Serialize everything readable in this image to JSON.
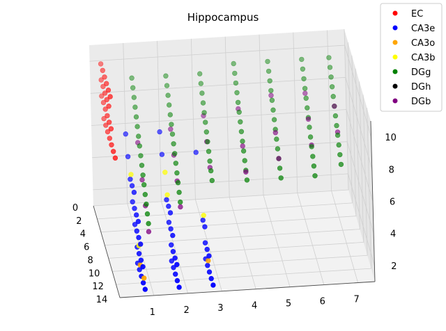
{
  "chart_data": {
    "type": "scatter",
    "projection": "3d",
    "title": "Hippocampus",
    "xlabel": "",
    "ylabel": "",
    "zlabel": "",
    "xlim": [
      0,
      7.5
    ],
    "ylim": [
      0,
      14
    ],
    "zlim": [
      1,
      11
    ],
    "x_ticks": [
      "1",
      "2",
      "3",
      "4",
      "5",
      "6",
      "7"
    ],
    "y_ticks": [
      "0",
      "2",
      "4",
      "6",
      "8",
      "10",
      "12",
      "14"
    ],
    "z_ticks": [
      "2",
      "4",
      "6",
      "8",
      "10"
    ],
    "grid": true,
    "legend_position": "top-right",
    "series": [
      {
        "name": "EC",
        "color": "#ff0000",
        "points": [
          [
            0.3,
            0.5,
            10
          ],
          [
            0.3,
            1.5,
            10
          ],
          [
            0.3,
            2.5,
            10
          ],
          [
            0.3,
            3.5,
            10
          ],
          [
            0.3,
            4.5,
            10
          ],
          [
            0.3,
            5.5,
            10
          ],
          [
            0.3,
            0.5,
            9
          ],
          [
            0.3,
            1.5,
            9
          ],
          [
            0.3,
            2.5,
            9
          ],
          [
            0.3,
            3.5,
            9
          ],
          [
            0.3,
            4.5,
            9
          ],
          [
            0.3,
            0.5,
            8
          ],
          [
            0.3,
            1.5,
            8
          ],
          [
            0.3,
            2.5,
            8
          ],
          [
            0.3,
            3.5,
            8
          ],
          [
            0.3,
            4.5,
            8
          ],
          [
            0.3,
            5.5,
            8
          ],
          [
            0.3,
            1.5,
            7
          ],
          [
            0.3,
            2.5,
            7
          ],
          [
            0.3,
            3.5,
            7
          ],
          [
            0.3,
            4.5,
            7
          ],
          [
            0.3,
            5.5,
            7
          ],
          [
            0.3,
            6.5,
            7
          ],
          [
            0.3,
            7.5,
            7
          ]
        ]
      },
      {
        "name": "CA3e",
        "color": "#0000ff",
        "points": [
          [
            0.8,
            9,
            1
          ],
          [
            0.8,
            10,
            1
          ],
          [
            0.8,
            11,
            1
          ],
          [
            0.8,
            12,
            1
          ],
          [
            0.8,
            13,
            1
          ],
          [
            0.8,
            9,
            2
          ],
          [
            0.8,
            10,
            2
          ],
          [
            0.8,
            11,
            2
          ],
          [
            0.8,
            12,
            2
          ],
          [
            0.8,
            8,
            3
          ],
          [
            0.8,
            9,
            3
          ],
          [
            0.8,
            10,
            3
          ],
          [
            0.8,
            11,
            3
          ],
          [
            0.8,
            7,
            4
          ],
          [
            0.8,
            8,
            4
          ],
          [
            0.8,
            9,
            4
          ],
          [
            0.8,
            10,
            4
          ],
          [
            0.8,
            6,
            5
          ],
          [
            0.8,
            7,
            5
          ],
          [
            0.8,
            8,
            5
          ],
          [
            1.8,
            9,
            1
          ],
          [
            1.8,
            10,
            1
          ],
          [
            1.8,
            11,
            1
          ],
          [
            1.8,
            12,
            1
          ],
          [
            1.8,
            13,
            1
          ],
          [
            1.8,
            9,
            2
          ],
          [
            1.8,
            10,
            2
          ],
          [
            1.8,
            11,
            2
          ],
          [
            1.8,
            12,
            2
          ],
          [
            1.8,
            8,
            3
          ],
          [
            1.8,
            9,
            3
          ],
          [
            1.8,
            10,
            3
          ],
          [
            1.8,
            7,
            4
          ],
          [
            1.8,
            8,
            4
          ],
          [
            1.8,
            9,
            4
          ],
          [
            2.8,
            9,
            1
          ],
          [
            2.8,
            10,
            1
          ],
          [
            2.8,
            11,
            1
          ],
          [
            2.8,
            12,
            1
          ],
          [
            2.8,
            13,
            1
          ],
          [
            2.8,
            9,
            2
          ],
          [
            2.8,
            10,
            2
          ],
          [
            2.8,
            11,
            2
          ],
          [
            2.8,
            8,
            3
          ],
          [
            2.8,
            9,
            3
          ],
          [
            0.8,
            5,
            6
          ],
          [
            1.8,
            5,
            6
          ],
          [
            0.8,
            4,
            7
          ],
          [
            1.8,
            4,
            7
          ],
          [
            2.8,
            5,
            6
          ]
        ]
      },
      {
        "name": "CA3o",
        "color": "#ffa500",
        "points": [
          [
            0.8,
            10.5,
            1.5
          ],
          [
            0.8,
            12.5,
            1.5
          ],
          [
            2.8,
            10.5,
            1.5
          ]
        ]
      },
      {
        "name": "CA3b",
        "color": "#ffff00",
        "points": [
          [
            0.8,
            6.5,
            5.5
          ],
          [
            1.8,
            7.5,
            4.5
          ],
          [
            2.8,
            8.5,
            3.5
          ],
          [
            1.8,
            6.5,
            5.5
          ],
          [
            0.8,
            10,
            2.5
          ]
        ]
      },
      {
        "name": "DGg",
        "color": "#008000",
        "points": [
          [
            1.2,
            0.5,
            9.0
          ],
          [
            1.2,
            1.0,
            8.6
          ],
          [
            1.2,
            1.5,
            8.2
          ],
          [
            1.2,
            2.0,
            7.8
          ],
          [
            1.2,
            2.5,
            7.4
          ],
          [
            1.2,
            3.0,
            7.0
          ],
          [
            1.2,
            3.5,
            6.6
          ],
          [
            1.2,
            4.0,
            6.2
          ],
          [
            1.2,
            4.5,
            5.8
          ],
          [
            1.2,
            5.0,
            5.4
          ],
          [
            1.2,
            5.5,
            5.0
          ],
          [
            1.2,
            6.0,
            4.6
          ],
          [
            1.2,
            6.5,
            4.2
          ],
          [
            1.2,
            7.0,
            3.8
          ],
          [
            1.2,
            7.5,
            3.4
          ],
          [
            1.2,
            8.0,
            3.0
          ],
          [
            2.2,
            0.5,
            9.0
          ],
          [
            2.2,
            1.0,
            8.6
          ],
          [
            2.2,
            1.5,
            8.2
          ],
          [
            2.2,
            2.0,
            7.8
          ],
          [
            2.2,
            2.5,
            7.4
          ],
          [
            2.2,
            3.0,
            7.0
          ],
          [
            2.2,
            3.5,
            6.6
          ],
          [
            2.2,
            4.0,
            6.2
          ],
          [
            2.2,
            4.5,
            5.8
          ],
          [
            2.2,
            5.0,
            5.4
          ],
          [
            2.2,
            5.5,
            5.0
          ],
          [
            2.2,
            6.0,
            4.6
          ],
          [
            2.2,
            6.5,
            4.2
          ],
          [
            2.2,
            7.0,
            3.8
          ],
          [
            3.2,
            0.5,
            9.0
          ],
          [
            3.2,
            1.0,
            8.6
          ],
          [
            3.2,
            1.5,
            8.2
          ],
          [
            3.2,
            2.0,
            7.8
          ],
          [
            3.2,
            2.5,
            7.4
          ],
          [
            3.2,
            3.0,
            7.0
          ],
          [
            3.2,
            3.5,
            6.6
          ],
          [
            3.2,
            4.0,
            6.2
          ],
          [
            3.2,
            4.5,
            5.8
          ],
          [
            3.2,
            5.0,
            5.4
          ],
          [
            3.2,
            5.5,
            5.0
          ],
          [
            3.2,
            6.0,
            4.6
          ],
          [
            4.2,
            0.5,
            9.5
          ],
          [
            4.2,
            1.0,
            9.1
          ],
          [
            4.2,
            1.5,
            8.7
          ],
          [
            4.2,
            2.0,
            8.3
          ],
          [
            4.2,
            2.5,
            7.9
          ],
          [
            4.2,
            3.0,
            7.5
          ],
          [
            4.2,
            3.5,
            7.1
          ],
          [
            4.2,
            4.0,
            6.7
          ],
          [
            4.2,
            4.5,
            6.3
          ],
          [
            4.2,
            5.0,
            5.9
          ],
          [
            4.2,
            5.5,
            5.5
          ],
          [
            4.2,
            6.0,
            5.1
          ],
          [
            4.2,
            6.5,
            4.7
          ],
          [
            5.2,
            0.5,
            9.5
          ],
          [
            5.2,
            1.0,
            9.1
          ],
          [
            5.2,
            1.5,
            8.7
          ],
          [
            5.2,
            2.0,
            8.3
          ],
          [
            5.2,
            2.5,
            7.9
          ],
          [
            5.2,
            3.0,
            7.5
          ],
          [
            5.2,
            3.5,
            7.1
          ],
          [
            5.2,
            4.0,
            6.7
          ],
          [
            5.2,
            4.5,
            6.3
          ],
          [
            5.2,
            5.0,
            5.9
          ],
          [
            5.2,
            5.5,
            5.5
          ],
          [
            5.2,
            6.0,
            5.1
          ],
          [
            5.2,
            6.5,
            4.7
          ],
          [
            6.2,
            0.5,
            9.5
          ],
          [
            6.2,
            1.0,
            9.1
          ],
          [
            6.2,
            1.5,
            8.7
          ],
          [
            6.2,
            2.0,
            8.3
          ],
          [
            6.2,
            2.5,
            7.9
          ],
          [
            6.2,
            3.0,
            7.5
          ],
          [
            6.2,
            3.5,
            7.1
          ],
          [
            6.2,
            4.0,
            6.7
          ],
          [
            6.2,
            4.5,
            6.3
          ],
          [
            6.2,
            5.0,
            5.9
          ],
          [
            6.2,
            5.5,
            5.5
          ],
          [
            6.2,
            6.0,
            5.1
          ],
          [
            6.2,
            6.5,
            4.7
          ],
          [
            7.0,
            0.5,
            9.5
          ],
          [
            7.0,
            1.0,
            9.1
          ],
          [
            7.0,
            1.5,
            8.7
          ],
          [
            7.0,
            2.0,
            8.3
          ],
          [
            7.0,
            2.5,
            7.9
          ],
          [
            7.0,
            3.0,
            7.5
          ],
          [
            7.0,
            3.5,
            7.1
          ],
          [
            7.0,
            4.0,
            6.7
          ],
          [
            7.0,
            4.5,
            6.3
          ],
          [
            7.0,
            5.0,
            5.9
          ],
          [
            7.0,
            5.5,
            5.5
          ],
          [
            7.0,
            6.0,
            5.1
          ]
        ]
      },
      {
        "name": "DGh",
        "color": "#000000",
        "points": []
      },
      {
        "name": "DGb",
        "color": "#800080",
        "points": [
          [
            1.2,
            3.0,
            6.0
          ],
          [
            1.2,
            5.0,
            4.5
          ],
          [
            1.2,
            6.5,
            3.5
          ],
          [
            1.2,
            8.0,
            2.5
          ],
          [
            2.2,
            2.5,
            6.5
          ],
          [
            2.2,
            4.0,
            5.5
          ],
          [
            2.2,
            5.5,
            4.5
          ],
          [
            2.2,
            7.0,
            3.5
          ],
          [
            3.2,
            2.0,
            7.0
          ],
          [
            3.2,
            3.5,
            6.0
          ],
          [
            3.2,
            5.0,
            5.0
          ],
          [
            4.2,
            2.5,
            7.5
          ],
          [
            4.2,
            4.5,
            6.0
          ],
          [
            4.2,
            6.0,
            5.0
          ],
          [
            5.2,
            2.0,
            8.0
          ],
          [
            5.2,
            4.0,
            6.5
          ],
          [
            5.2,
            5.5,
            5.5
          ],
          [
            6.2,
            2.0,
            8.0
          ],
          [
            6.2,
            3.5,
            7.0
          ],
          [
            6.2,
            5.0,
            6.0
          ],
          [
            7.0,
            3.0,
            7.5
          ],
          [
            7.0,
            4.5,
            6.5
          ]
        ]
      }
    ]
  }
}
